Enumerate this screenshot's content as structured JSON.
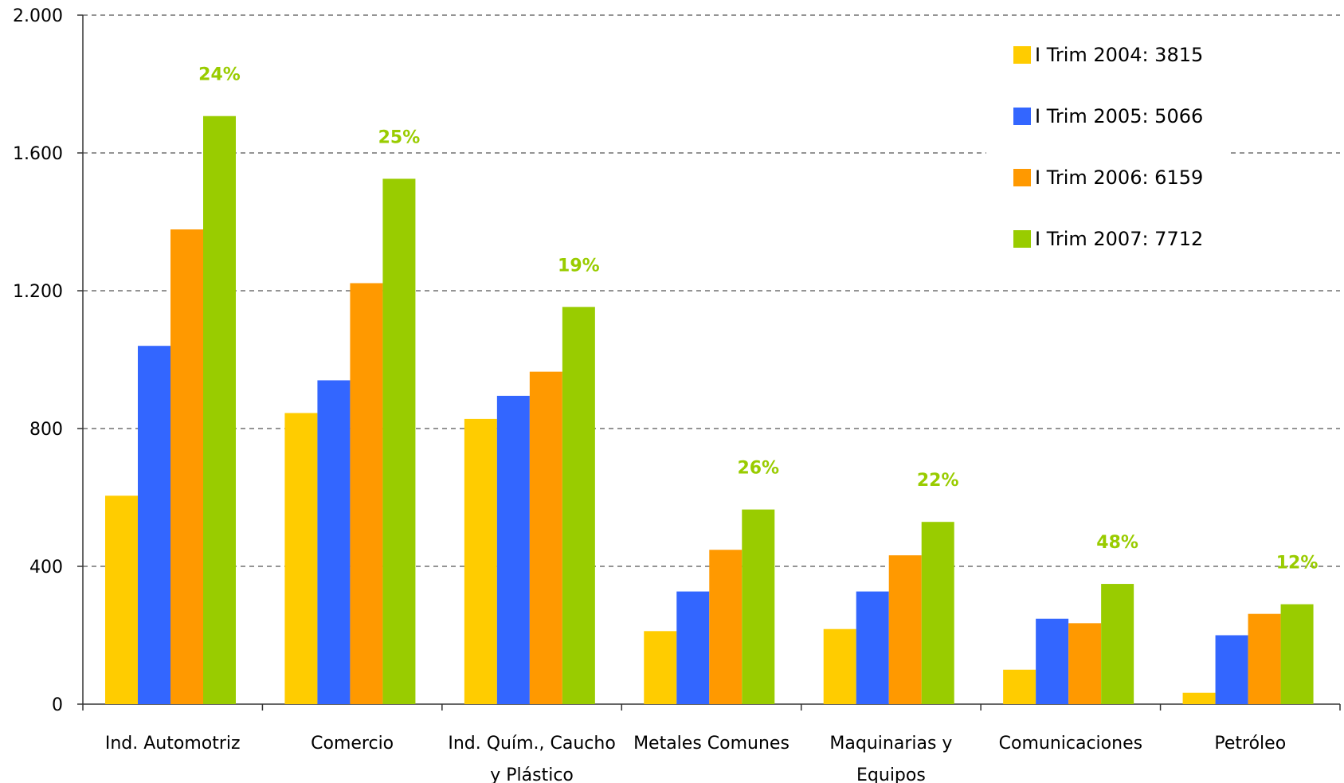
{
  "chart_data": {
    "type": "bar",
    "title": "",
    "xlabel": "",
    "ylabel": "",
    "ylim": [
      0,
      2000
    ],
    "yticks": [
      {
        "value": 0,
        "label": "0"
      },
      {
        "value": 400,
        "label": "400"
      },
      {
        "value": 800,
        "label": "800"
      },
      {
        "value": 1200,
        "label": "1.200"
      },
      {
        "value": 1600,
        "label": "1.600"
      },
      {
        "value": 2000,
        "label": "2.000"
      }
    ],
    "grid": true,
    "legend_position": "top-right",
    "categories": [
      [
        "Ind. Automotriz"
      ],
      [
        "Comercio"
      ],
      [
        "Ind. Quím., Caucho",
        "y Plástico"
      ],
      [
        "Metales Comunes"
      ],
      [
        "Maquinarias y",
        "Equipos"
      ],
      [
        "Comunicaciones"
      ],
      [
        "Petróleo"
      ]
    ],
    "series": [
      {
        "name": "I Trim 2004: 3815",
        "color": "#FFCC00",
        "values": [
          605,
          845,
          828,
          212,
          218,
          100,
          33
        ]
      },
      {
        "name": "I Trim 2005: 5066",
        "color": "#3366FF",
        "values": [
          1040,
          940,
          895,
          327,
          327,
          248,
          200
        ]
      },
      {
        "name": "I Trim 2006: 6159",
        "color": "#FF9900",
        "values": [
          1378,
          1222,
          965,
          448,
          432,
          235,
          262
        ]
      },
      {
        "name": "I Trim 2007: 7712",
        "color": "#99CC00",
        "values": [
          1707,
          1525,
          1153,
          565,
          529,
          349,
          290
        ]
      }
    ],
    "annotations": {
      "color": "#99CC00",
      "labels": [
        "24%",
        "25%",
        "19%",
        "26%",
        "22%",
        "48%",
        "12%"
      ]
    }
  }
}
